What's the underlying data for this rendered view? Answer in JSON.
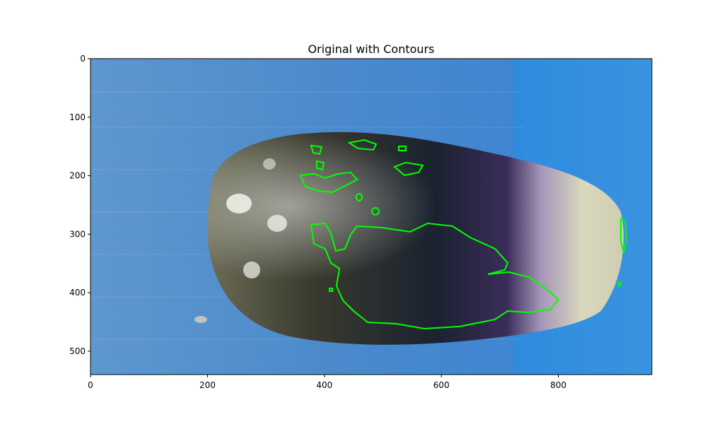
{
  "figure": {
    "title": "Original with Contours"
  },
  "chart_data": {
    "type": "image",
    "title": "Original with Contours",
    "xlabel": "",
    "ylabel": "",
    "xlim": [
      0,
      960
    ],
    "ylim": [
      540,
      0
    ],
    "x_ticks": [
      0,
      200,
      400,
      600,
      800
    ],
    "y_ticks": [
      0,
      100,
      200,
      300,
      400,
      500
    ],
    "image_size": [
      960,
      540
    ],
    "contour_color": "#00ff00"
  },
  "colors": {
    "background_blue": "#4a8fd0",
    "contour": "#00ff00",
    "seed_dark": "#1f2a3a",
    "seed_purple": "#5a3a7a",
    "seed_cream": "#d8d6b8"
  }
}
